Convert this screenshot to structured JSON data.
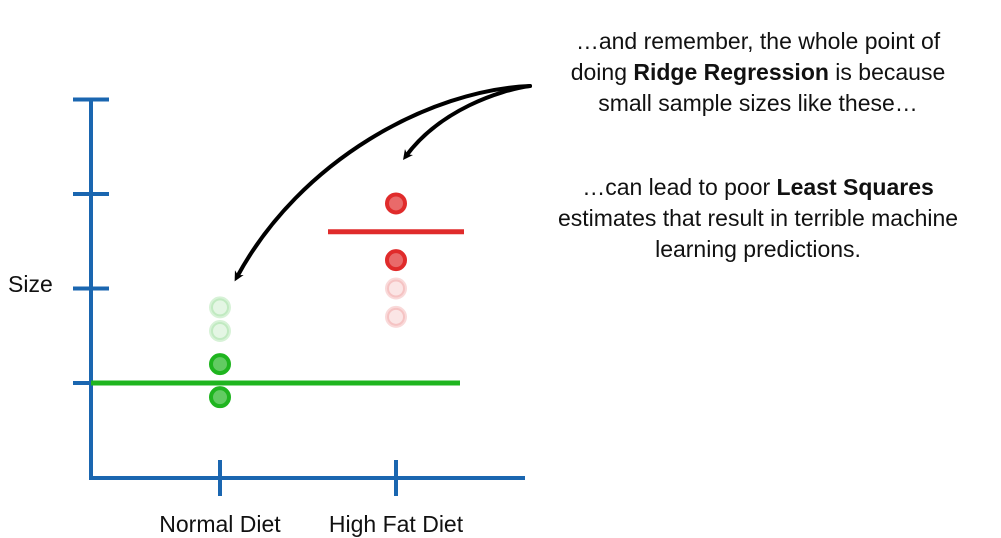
{
  "chart_data": {
    "type": "scatter",
    "ylabel": "Size",
    "xlabel": "",
    "categories": [
      "Normal Diet",
      "High Fat Diet"
    ],
    "y_ticks": 4,
    "ylim": [
      0,
      4
    ],
    "grid": false,
    "series": [
      {
        "category": "Normal Diet",
        "color": "#1fb51f",
        "points": [
          {
            "y": 0.85,
            "faded": false
          },
          {
            "y": 1.2,
            "faded": false
          },
          {
            "y": 1.55,
            "faded": true
          },
          {
            "y": 1.8,
            "faded": true
          }
        ],
        "fit_line": 1.0
      },
      {
        "category": "High Fat Diet",
        "color": "#e02b2b",
        "points": [
          {
            "y": 2.9,
            "faded": false
          },
          {
            "y": 2.3,
            "faded": false
          },
          {
            "y": 2.0,
            "faded": true
          },
          {
            "y": 1.7,
            "faded": true
          }
        ],
        "fit_line": 2.6
      }
    ]
  },
  "annotations": {
    "note1_line1": "…and remember, the whole point of",
    "note1_line2_pre": "doing ",
    "note1_line2_bold": "Ridge Regression",
    "note1_line2_post": " is because",
    "note1_line3": "small sample sizes like these…",
    "note2_line1_pre": "…can lead to poor ",
    "note2_line1_bold": "Least Squares",
    "note2_line2": "estimates that result in terrible machine",
    "note2_line3": "learning predictions."
  }
}
